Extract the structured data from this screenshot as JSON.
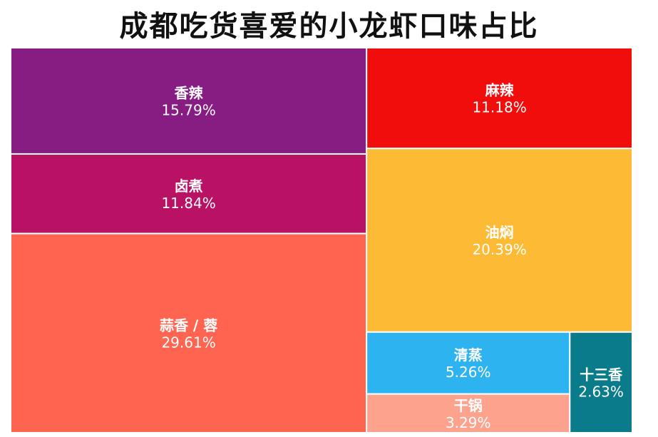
{
  "title": "成都吃货喜爱的小龙虾口味占比",
  "chart_data": {
    "type": "treemap",
    "title": "成都吃货喜爱的小龙虾口味占比",
    "items": [
      {
        "name": "香辣",
        "value": 15.79,
        "label": "15.79%",
        "color": "#871c83"
      },
      {
        "name": "麻辣",
        "value": 11.18,
        "label": "11.18%",
        "color": "#f20d0d"
      },
      {
        "name": "卤煮",
        "value": 11.84,
        "label": "11.84%",
        "color": "#b91164"
      },
      {
        "name": "油焖",
        "value": 20.39,
        "label": "20.39%",
        "color": "#fdba34"
      },
      {
        "name": "蒜香 / 蓉",
        "value": 29.61,
        "label": "29.61%",
        "color": "#fe6450"
      },
      {
        "name": "清蒸",
        "value": 5.26,
        "label": "5.26%",
        "color": "#2db3f0"
      },
      {
        "name": "干锅",
        "value": 3.29,
        "label": "3.29%",
        "color": "#fda28d"
      },
      {
        "name": "十三香",
        "value": 2.63,
        "label": "2.63%",
        "color": "#097b8b"
      }
    ]
  }
}
